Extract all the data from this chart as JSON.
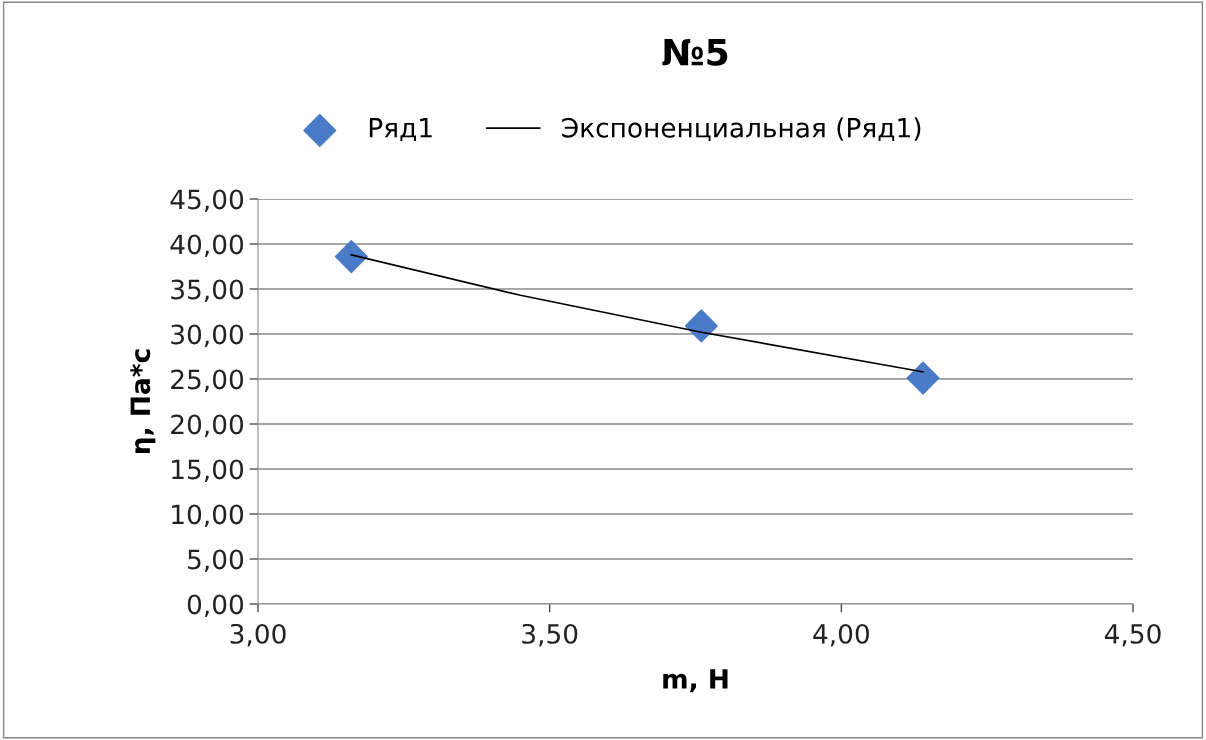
{
  "chart_data": {
    "type": "scatter",
    "title": "№5",
    "xlabel": "m, Н",
    "ylabel": "η, Па*с",
    "series": [
      {
        "name": "Ряд1",
        "color": "#4a7bc8",
        "marker": "diamond",
        "x": [
          3.16,
          3.76,
          4.14
        ],
        "values": [
          38.6,
          30.9,
          25.1
        ]
      },
      {
        "name": "Экспоненциальная (Ряд1)",
        "type": "line",
        "color": "#000000",
        "marker": "none",
        "line_style": "solid",
        "x": [
          3.16,
          3.45,
          3.76,
          4.14
        ],
        "values": [
          38.8,
          34.3,
          30.2,
          25.8
        ]
      }
    ],
    "xlim": [
      3.0,
      4.5
    ],
    "xticks": [
      {
        "value": 3.0,
        "label": "3,00"
      },
      {
        "value": 3.5,
        "label": "3,50"
      },
      {
        "value": 4.0,
        "label": "4,00"
      },
      {
        "value": 4.5,
        "label": "4,50"
      }
    ],
    "ylim": [
      0,
      45
    ],
    "yticks": [
      {
        "value": 0,
        "label": "0,00"
      },
      {
        "value": 5,
        "label": "5,00"
      },
      {
        "value": 10,
        "label": "10,00"
      },
      {
        "value": 15,
        "label": "15,00"
      },
      {
        "value": 20,
        "label": "20,00"
      },
      {
        "value": 25,
        "label": "25,00"
      },
      {
        "value": 30,
        "label": "30,00"
      },
      {
        "value": 35,
        "label": "35,00"
      },
      {
        "value": 40,
        "label": "40,00"
      },
      {
        "value": 45,
        "label": "45,00"
      }
    ],
    "grid": "y",
    "legend": "top"
  }
}
